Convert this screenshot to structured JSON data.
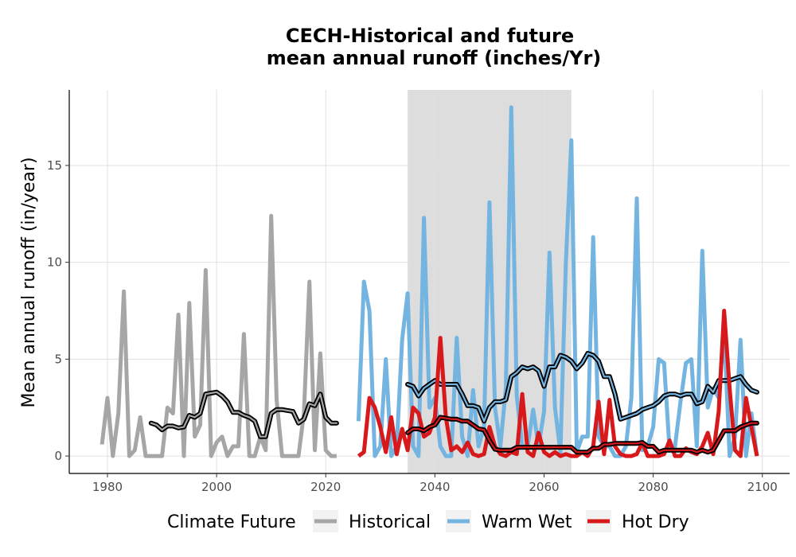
{
  "chart_data": {
    "type": "line",
    "title_lines": [
      "CECH-Historical and future",
      "mean annual runoff (inches/Yr)"
    ],
    "xlabel": "",
    "ylabel": "Mean annual runoff (in/year)",
    "xlim": [
      1973,
      2105
    ],
    "ylim": [
      -0.9,
      18.9
    ],
    "x_ticks": [
      1980,
      2000,
      2020,
      2040,
      2060,
      2080,
      2100
    ],
    "y_ticks": [
      0,
      5,
      10,
      15
    ],
    "grid": true,
    "shaded_period": [
      2035,
      2065
    ],
    "legend": {
      "position": "bottom",
      "title": "Climate Future",
      "entries": [
        "Historical",
        "Warm Wet",
        "Hot Dry"
      ]
    },
    "series": [
      {
        "name": "Historical",
        "color": "#a6a6a6",
        "x": [
          1979,
          1980,
          1981,
          1982,
          1983,
          1984,
          1985,
          1986,
          1987,
          1988,
          1989,
          1990,
          1991,
          1992,
          1993,
          1994,
          1995,
          1996,
          1997,
          1998,
          1999,
          2000,
          2001,
          2002,
          2003,
          2004,
          2005,
          2006,
          2007,
          2008,
          2009,
          2010,
          2011,
          2012,
          2013,
          2014,
          2015,
          2016,
          2017,
          2018,
          2019,
          2020,
          2021,
          2022
        ],
        "y": [
          0.6,
          3.0,
          0.0,
          2.2,
          8.5,
          0.0,
          0.3,
          2.0,
          0.0,
          0.0,
          0.0,
          0.0,
          2.5,
          2.2,
          7.3,
          0.0,
          7.9,
          1.0,
          1.6,
          9.6,
          0.0,
          0.7,
          1.0,
          0.0,
          0.5,
          0.5,
          6.3,
          0.0,
          0.0,
          1.0,
          0.3,
          12.4,
          2.9,
          0.0,
          0.0,
          0.0,
          0.0,
          2.2,
          9.0,
          0.3,
          5.3,
          0.3,
          0.0,
          0.0
        ]
      },
      {
        "name": "Historical",
        "color": "#000000",
        "smooth": true,
        "x": [
          1988,
          1989,
          1990,
          1991,
          1992,
          1993,
          1994,
          1995,
          1996,
          1997,
          1998,
          1999,
          2000,
          2001,
          2002,
          2003,
          2004,
          2005,
          2006,
          2007,
          2008,
          2009,
          2010,
          2011,
          2012,
          2013,
          2014,
          2015,
          2016,
          2017,
          2018,
          2019,
          2020,
          2021,
          2022
        ],
        "y": [
          1.7,
          1.6,
          1.35,
          1.55,
          1.55,
          1.45,
          1.5,
          2.1,
          2.0,
          2.2,
          3.2,
          3.25,
          3.3,
          3.1,
          2.8,
          2.25,
          2.25,
          2.1,
          2.0,
          1.8,
          1.0,
          1.0,
          2.2,
          2.4,
          2.4,
          2.35,
          2.3,
          1.7,
          1.9,
          2.7,
          2.6,
          3.2,
          2.0,
          1.7,
          1.7
        ]
      },
      {
        "name": "Warm Wet",
        "color": "#74b4e0",
        "x": [
          2026,
          2027,
          2028,
          2029,
          2030,
          2031,
          2032,
          2033,
          2034,
          2035,
          2036,
          2037,
          2038,
          2039,
          2040,
          2041,
          2042,
          2043,
          2044,
          2045,
          2046,
          2047,
          2048,
          2049,
          2050,
          2051,
          2052,
          2053,
          2054,
          2055,
          2056,
          2057,
          2058,
          2059,
          2060,
          2061,
          2062,
          2063,
          2064,
          2065,
          2066,
          2067,
          2068,
          2069,
          2070,
          2071,
          2072,
          2073,
          2074,
          2075,
          2076,
          2077,
          2078,
          2079,
          2080,
          2081,
          2082,
          2083,
          2084,
          2085,
          2086,
          2087,
          2088,
          2089,
          2090,
          2091,
          2092,
          2093,
          2094,
          2095,
          2096,
          2097,
          2098,
          2099
        ],
        "y": [
          1.8,
          9.0,
          7.5,
          0.0,
          0.5,
          5.0,
          0.0,
          0.5,
          6.0,
          8.4,
          0.5,
          0.0,
          12.3,
          2.5,
          3.0,
          0.5,
          0.0,
          0.0,
          6.1,
          1.0,
          0.0,
          3.4,
          0.5,
          1.5,
          13.1,
          2.5,
          0.5,
          3.5,
          18.0,
          3.1,
          0.5,
          0.5,
          2.4,
          0.5,
          2.3,
          10.5,
          2.5,
          0.2,
          10.0,
          16.3,
          0.2,
          1.0,
          1.0,
          11.3,
          1.0,
          0.5,
          0.5,
          0.0,
          0.0,
          0.5,
          3.0,
          13.3,
          0.3,
          0.5,
          1.5,
          5.0,
          4.8,
          0.3,
          0.5,
          2.8,
          4.8,
          5.0,
          0.5,
          10.6,
          2.5,
          3.5,
          3.0,
          6.6,
          0.0,
          1.0,
          6.0,
          0.0,
          2.2,
          0.0
        ]
      },
      {
        "name": "Warm Wet",
        "color": "#000000",
        "smooth": true,
        "x": [
          2035,
          2036,
          2037,
          2038,
          2039,
          2040,
          2041,
          2042,
          2043,
          2044,
          2045,
          2046,
          2047,
          2048,
          2049,
          2050,
          2051,
          2052,
          2053,
          2054,
          2055,
          2056,
          2057,
          2058,
          2059,
          2060,
          2061,
          2062,
          2063,
          2064,
          2065,
          2066,
          2067,
          2068,
          2069,
          2070,
          2071,
          2072,
          2073,
          2074,
          2075,
          2076,
          2077,
          2078,
          2079,
          2080,
          2081,
          2082,
          2083,
          2084,
          2085,
          2086,
          2087,
          2088,
          2089,
          2090,
          2091,
          2092,
          2093,
          2094,
          2095,
          2096,
          2097,
          2098,
          2099
        ],
        "y": [
          3.7,
          3.6,
          3.1,
          3.5,
          3.7,
          3.9,
          3.7,
          3.7,
          3.7,
          3.7,
          3.2,
          2.6,
          2.6,
          2.5,
          1.8,
          2.5,
          2.8,
          2.8,
          2.9,
          4.1,
          4.3,
          4.6,
          4.5,
          4.6,
          4.4,
          3.6,
          4.6,
          4.6,
          5.2,
          5.1,
          4.9,
          4.5,
          4.8,
          5.3,
          5.2,
          4.9,
          4.1,
          4.1,
          3.2,
          1.9,
          2.0,
          2.1,
          2.2,
          2.4,
          2.5,
          2.6,
          2.8,
          3.1,
          3.2,
          3.2,
          3.1,
          3.2,
          3.2,
          2.7,
          2.8,
          3.6,
          3.3,
          3.9,
          3.9,
          3.9,
          4.0,
          4.1,
          3.7,
          3.4,
          3.3
        ]
      },
      {
        "name": "Hot Dry",
        "color": "#d7191c",
        "x": [
          2026,
          2027,
          2028,
          2029,
          2030,
          2031,
          2032,
          2033,
          2034,
          2035,
          2036,
          2037,
          2038,
          2039,
          2040,
          2041,
          2042,
          2043,
          2044,
          2045,
          2046,
          2047,
          2048,
          2049,
          2050,
          2051,
          2052,
          2053,
          2054,
          2055,
          2056,
          2057,
          2058,
          2059,
          2060,
          2061,
          2062,
          2063,
          2064,
          2065,
          2066,
          2067,
          2068,
          2069,
          2070,
          2071,
          2072,
          2073,
          2074,
          2075,
          2076,
          2077,
          2078,
          2079,
          2080,
          2081,
          2082,
          2083,
          2084,
          2085,
          2086,
          2087,
          2088,
          2089,
          2090,
          2091,
          2092,
          2093,
          2094,
          2095,
          2096,
          2097,
          2098,
          2099
        ],
        "y": [
          0.0,
          0.2,
          3.0,
          2.5,
          1.5,
          0.2,
          2.0,
          0.1,
          1.4,
          0.3,
          2.5,
          2.2,
          1.0,
          1.2,
          2.0,
          6.1,
          2.0,
          0.3,
          0.5,
          0.2,
          0.7,
          0.1,
          0.0,
          0.1,
          1.5,
          0.5,
          0.1,
          0.0,
          0.2,
          0.1,
          3.2,
          0.2,
          0.0,
          1.2,
          0.2,
          0.0,
          0.2,
          0.0,
          0.1,
          0.0,
          0.0,
          0.2,
          0.0,
          0.5,
          2.8,
          0.1,
          2.9,
          0.5,
          0.1,
          0.0,
          0.0,
          0.1,
          0.7,
          0.0,
          0.0,
          0.0,
          0.1,
          0.8,
          0.0,
          0.0,
          0.4,
          0.2,
          0.1,
          0.5,
          1.2,
          0.1,
          2.3,
          7.5,
          3.5,
          0.3,
          0.0,
          3.0,
          1.5,
          0.0
        ]
      },
      {
        "name": "Hot Dry",
        "color": "#000000",
        "smooth": true,
        "x": [
          2035,
          2036,
          2037,
          2038,
          2039,
          2040,
          2041,
          2042,
          2043,
          2044,
          2045,
          2046,
          2047,
          2048,
          2049,
          2050,
          2051,
          2052,
          2053,
          2054,
          2055,
          2056,
          2057,
          2058,
          2059,
          2060,
          2061,
          2062,
          2063,
          2064,
          2065,
          2066,
          2067,
          2068,
          2069,
          2070,
          2071,
          2072,
          2073,
          2074,
          2075,
          2076,
          2077,
          2078,
          2079,
          2080,
          2081,
          2082,
          2083,
          2084,
          2085,
          2086,
          2087,
          2088,
          2089,
          2090,
          2091,
          2092,
          2093,
          2094,
          2095,
          2096,
          2097,
          2098,
          2099
        ],
        "y": [
          1.2,
          1.4,
          1.4,
          1.3,
          1.5,
          1.6,
          2.0,
          1.95,
          1.9,
          1.9,
          1.8,
          1.8,
          1.6,
          1.4,
          1.35,
          0.8,
          0.35,
          0.3,
          0.3,
          0.3,
          0.45,
          0.45,
          0.45,
          0.45,
          0.45,
          0.45,
          0.45,
          0.45,
          0.45,
          0.45,
          0.45,
          0.2,
          0.2,
          0.2,
          0.4,
          0.4,
          0.6,
          0.6,
          0.65,
          0.65,
          0.65,
          0.65,
          0.65,
          0.7,
          0.5,
          0.5,
          0.2,
          0.3,
          0.3,
          0.3,
          0.3,
          0.3,
          0.3,
          0.2,
          0.3,
          0.2,
          0.3,
          0.8,
          1.3,
          1.3,
          1.3,
          1.5,
          1.6,
          1.7,
          1.7
        ]
      }
    ]
  }
}
